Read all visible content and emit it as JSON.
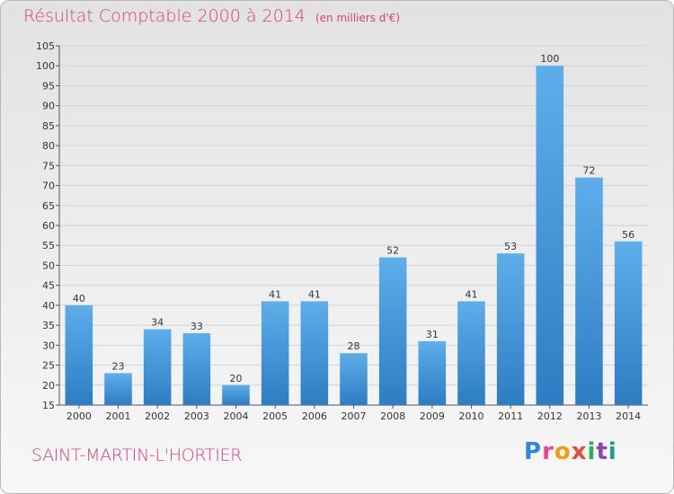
{
  "chart_data": {
    "type": "bar",
    "title": "Résultat Comptable 2000 à 2014",
    "unit_note": "(en milliers d'€)",
    "categories": [
      "2000",
      "2001",
      "2002",
      "2003",
      "2004",
      "2005",
      "2006",
      "2007",
      "2008",
      "2009",
      "2010",
      "2011",
      "2012",
      "2013",
      "2014"
    ],
    "values": [
      40,
      23,
      34,
      33,
      20,
      41,
      41,
      28,
      52,
      31,
      41,
      53,
      100,
      72,
      56
    ],
    "ylim": [
      15,
      105
    ],
    "yticks": [
      15,
      20,
      25,
      30,
      35,
      40,
      45,
      50,
      55,
      60,
      65,
      70,
      75,
      80,
      85,
      90,
      95,
      100,
      105
    ],
    "grid": true,
    "xlabel": "",
    "ylabel": "",
    "bar_color": "#4a9fe0",
    "bar_color_top": "#5daeea",
    "bar_color_bottom": "#2d7dc4"
  },
  "commune_name": "SAINT-MARTIN-L'HORTIER",
  "logo": {
    "text": "Proxiti",
    "letters": [
      "P",
      "r",
      "o",
      "x",
      "i",
      "t",
      "i"
    ],
    "colors": [
      "#2e86de",
      "#e84393",
      "#f39c12",
      "#e74c3c",
      "#27ae60",
      "#8e44ad",
      "#16a085"
    ]
  },
  "colors": {
    "title": "#d2427c",
    "grid": "#d4d4d4",
    "axis": "#555555"
  }
}
